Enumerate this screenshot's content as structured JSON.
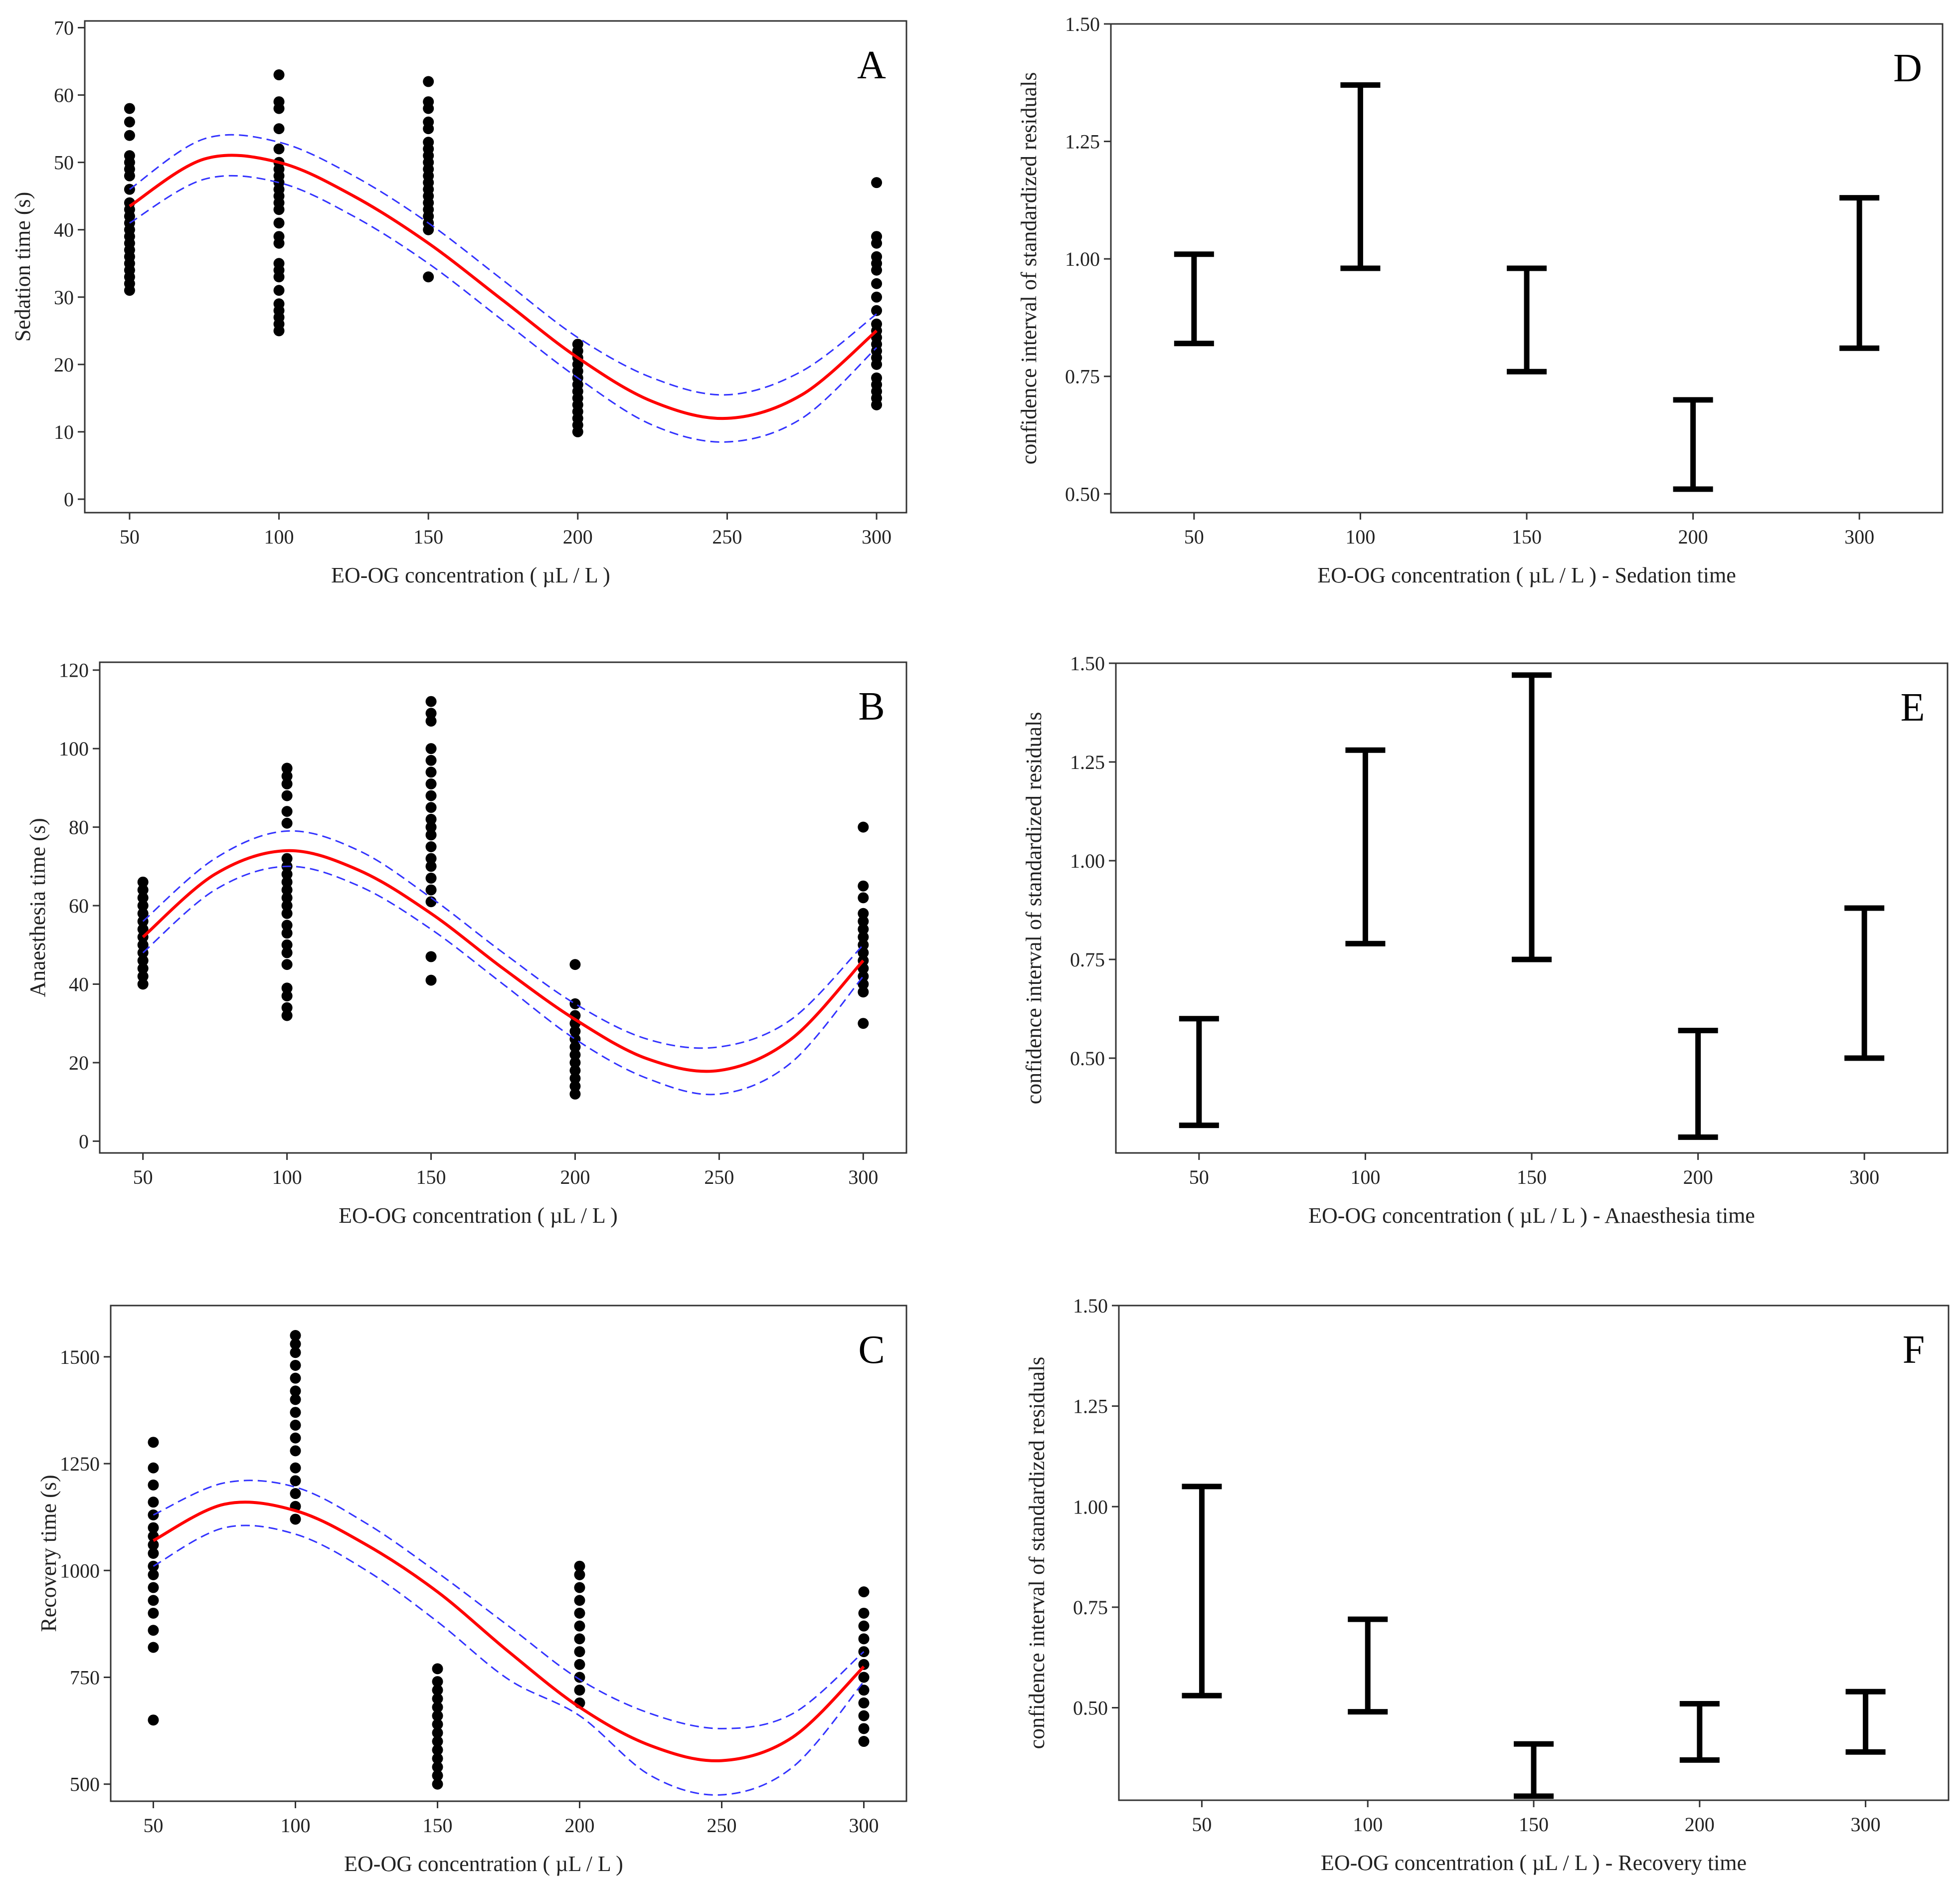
{
  "figure_title": "",
  "chart_data": [
    {
      "id": "A",
      "type": "scatter",
      "panel_label": "A",
      "xlabel": "EO-OG concentration ( µL / L )",
      "ylabel": "Sedation time (s)",
      "xlim": [
        35,
        310
      ],
      "ylim": [
        -2,
        71
      ],
      "xticks": [
        50,
        100,
        150,
        200,
        250,
        300
      ],
      "yticks": [
        0,
        10,
        20,
        30,
        40,
        50,
        60,
        70
      ],
      "colors": {
        "points": "#000000",
        "fit": "#ff0000",
        "ci": "#3333ff"
      },
      "series": [
        {
          "name": "50",
          "x": 50,
          "values": [
            31,
            32,
            33,
            34,
            35,
            36,
            37,
            38,
            39,
            40,
            41,
            42,
            43,
            44,
            46,
            48,
            49,
            50,
            51,
            54,
            56,
            58
          ]
        },
        {
          "name": "100",
          "x": 100,
          "values": [
            25,
            26,
            27,
            28,
            29,
            31,
            33,
            34,
            35,
            38,
            39,
            41,
            43,
            44,
            45,
            46,
            47,
            48,
            49,
            50,
            52,
            55,
            58,
            59,
            63
          ]
        },
        {
          "name": "150",
          "x": 150,
          "values": [
            33,
            40,
            41,
            42,
            43,
            44,
            45,
            46,
            47,
            48,
            49,
            50,
            51,
            52,
            53,
            55,
            56,
            58,
            59,
            62
          ]
        },
        {
          "name": "200",
          "x": 200,
          "values": [
            10,
            11,
            12,
            13,
            14,
            15,
            16,
            17,
            18,
            19,
            20,
            21,
            22,
            23
          ]
        },
        {
          "name": "300",
          "x": 300,
          "values": [
            14,
            15,
            16,
            17,
            18,
            20,
            21,
            22,
            23,
            24,
            25,
            26,
            28,
            30,
            32,
            34,
            35,
            36,
            38,
            39,
            47
          ]
        }
      ],
      "fit": {
        "x": [
          50,
          75,
          100,
          125,
          150,
          175,
          200,
          225,
          250,
          275,
          300
        ],
        "y": [
          43.5,
          50.5,
          50,
          45,
          38,
          29.5,
          21,
          14.5,
          12,
          15.5,
          25
        ],
        "lower": [
          41,
          47.5,
          47,
          42,
          35,
          26.5,
          18,
          11,
          8.5,
          12,
          22.5
        ],
        "upper": [
          46,
          53.5,
          53,
          48,
          41,
          32.5,
          24,
          18,
          15.5,
          19,
          27.5
        ]
      }
    },
    {
      "id": "B",
      "type": "scatter",
      "panel_label": "B",
      "xlabel": "EO-OG concentration ( µL / L )",
      "ylabel": "Anaesthesia time (s)",
      "xlim": [
        35,
        315
      ],
      "ylim": [
        -3,
        122
      ],
      "xticks": [
        50,
        100,
        150,
        200,
        250,
        300
      ],
      "yticks": [
        0,
        20,
        40,
        60,
        80,
        100,
        120
      ],
      "colors": {
        "points": "#000000",
        "fit": "#ff0000",
        "ci": "#3333ff"
      },
      "series": [
        {
          "name": "50",
          "x": 50,
          "values": [
            40,
            42,
            44,
            46,
            48,
            50,
            52,
            54,
            56,
            58,
            60,
            62,
            64,
            66
          ]
        },
        {
          "name": "100",
          "x": 100,
          "values": [
            32,
            34,
            37,
            39,
            45,
            48,
            50,
            53,
            55,
            58,
            60,
            62,
            64,
            66,
            68,
            70,
            72,
            81,
            84,
            88,
            91,
            93,
            95
          ]
        },
        {
          "name": "150",
          "x": 150,
          "values": [
            41,
            47,
            61,
            64,
            67,
            70,
            72,
            75,
            78,
            80,
            82,
            85,
            88,
            91,
            94,
            97,
            100,
            107,
            109,
            112
          ]
        },
        {
          "name": "200",
          "x": 200,
          "values": [
            12,
            14,
            16,
            18,
            20,
            22,
            24,
            26,
            28,
            30,
            32,
            35,
            45
          ]
        },
        {
          "name": "300",
          "x": 300,
          "values": [
            30,
            38,
            40,
            42,
            44,
            46,
            48,
            50,
            52,
            54,
            56,
            58,
            62,
            65,
            80
          ]
        }
      ],
      "fit": {
        "x": [
          50,
          75,
          100,
          125,
          150,
          175,
          200,
          225,
          250,
          275,
          300
        ],
        "y": [
          52,
          68,
          74,
          69,
          58,
          44,
          31,
          21,
          18,
          26,
          46
        ],
        "lower": [
          48,
          64,
          70,
          65,
          54,
          40,
          26,
          16,
          12,
          20,
          42
        ],
        "upper": [
          56,
          72,
          79,
          74,
          62,
          48,
          35,
          26,
          24,
          31,
          50
        ]
      }
    },
    {
      "id": "C",
      "type": "scatter",
      "panel_label": "C",
      "xlabel": "EO-OG concentration ( µL / L )",
      "ylabel": "Recovery time (s)",
      "xlim": [
        35,
        315
      ],
      "ylim": [
        460,
        1620
      ],
      "xticks": [
        50,
        100,
        150,
        200,
        250,
        300
      ],
      "yticks": [
        500,
        750,
        1000,
        1250,
        1500
      ],
      "colors": {
        "points": "#000000",
        "fit": "#ff0000",
        "ci": "#3333ff"
      },
      "series": [
        {
          "name": "50",
          "x": 50,
          "values": [
            650,
            820,
            860,
            900,
            930,
            960,
            990,
            1010,
            1040,
            1060,
            1080,
            1100,
            1130,
            1160,
            1200,
            1240,
            1300
          ]
        },
        {
          "name": "100",
          "x": 100,
          "values": [
            1120,
            1150,
            1180,
            1210,
            1240,
            1280,
            1310,
            1340,
            1370,
            1400,
            1420,
            1450,
            1480,
            1510,
            1530,
            1550
          ]
        },
        {
          "name": "150",
          "x": 150,
          "values": [
            500,
            520,
            540,
            560,
            580,
            600,
            620,
            640,
            660,
            680,
            700,
            720,
            740,
            770
          ]
        },
        {
          "name": "200",
          "x": 200,
          "values": [
            690,
            720,
            750,
            780,
            810,
            840,
            870,
            900,
            930,
            960,
            990,
            1010
          ]
        },
        {
          "name": "300",
          "x": 300,
          "values": [
            600,
            630,
            660,
            690,
            720,
            750,
            780,
            810,
            840,
            870,
            900,
            950
          ]
        }
      ],
      "fit": {
        "x": [
          50,
          75,
          100,
          125,
          150,
          175,
          200,
          225,
          250,
          275,
          300
        ],
        "y": [
          1070,
          1155,
          1140,
          1060,
          950,
          810,
          680,
          590,
          555,
          610,
          775
        ],
        "lower": [
          1010,
          1100,
          1085,
          1000,
          880,
          745,
          660,
          520,
          475,
          540,
          740
        ],
        "upper": [
          1130,
          1205,
          1195,
          1110,
          995,
          870,
          745,
          665,
          630,
          665,
          810
        ]
      }
    },
    {
      "id": "D",
      "type": "errorbar",
      "panel_label": "D",
      "xlabel": "EO-OG concentration ( µL / L ) - Sedation time",
      "ylabel": "confidence interval of standardized residuals",
      "ylim": [
        0.46,
        1.5
      ],
      "categories": [
        "50",
        "100",
        "150",
        "200",
        "300"
      ],
      "yticks": [
        0.5,
        0.75,
        1.0,
        1.25,
        1.5
      ],
      "ytick_labels": [
        "0.50",
        "0.75",
        "1.00",
        "1.25",
        "1.50"
      ],
      "lower": [
        0.82,
        0.98,
        0.76,
        0.51,
        0.81
      ],
      "upper": [
        1.01,
        1.37,
        0.98,
        0.7,
        1.13
      ],
      "colors": {
        "bars": "#000000"
      }
    },
    {
      "id": "E",
      "type": "errorbar",
      "panel_label": "E",
      "xlabel": "EO-OG concentration ( µL / L ) - Anaesthesia time",
      "ylabel": "confidence interval of standardized residuals",
      "ylim": [
        0.26,
        1.5
      ],
      "categories": [
        "50",
        "100",
        "150",
        "200",
        "300"
      ],
      "yticks": [
        0.5,
        0.75,
        1.0,
        1.25,
        1.5
      ],
      "ytick_labels": [
        "0.50",
        "0.75",
        "1.00",
        "1.25",
        "1.50"
      ],
      "lower": [
        0.33,
        0.79,
        0.75,
        0.3,
        0.5
      ],
      "upper": [
        0.6,
        1.28,
        1.47,
        0.57,
        0.88
      ],
      "colors": {
        "bars": "#000000"
      }
    },
    {
      "id": "F",
      "type": "errorbar",
      "panel_label": "F",
      "xlabel": "EO-OG concentration ( µL / L ) - Recovery time",
      "ylabel": "confidence interval of standardized residuals",
      "ylim": [
        0.27,
        1.5
      ],
      "categories": [
        "50",
        "100",
        "150",
        "200",
        "300"
      ],
      "yticks": [
        0.5,
        0.75,
        1.0,
        1.25,
        1.5
      ],
      "ytick_labels": [
        "0.50",
        "0.75",
        "1.00",
        "1.25",
        "1.50"
      ],
      "lower": [
        0.53,
        0.49,
        0.28,
        0.37,
        0.39
      ],
      "upper": [
        1.05,
        0.72,
        0.41,
        0.51,
        0.54
      ],
      "colors": {
        "bars": "#000000"
      }
    }
  ]
}
